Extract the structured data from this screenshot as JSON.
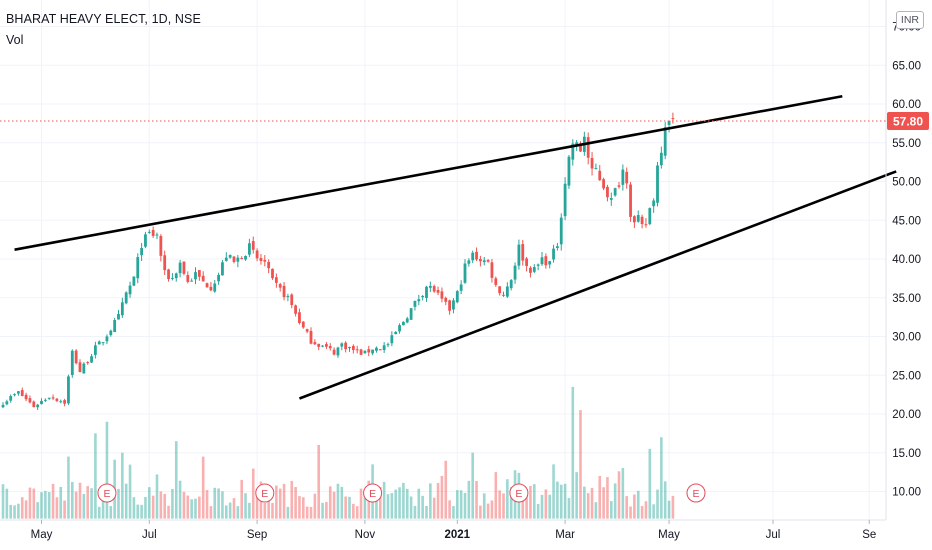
{
  "header": {
    "symbol_line": "BHARAT HEAVY ELECT, 1D, NSE",
    "volume_label": "Vol",
    "currency": "INR"
  },
  "chart_data": {
    "type": "candlestick",
    "title": "BHARAT HEAVY ELECT, 1D, NSE",
    "y_axis_side": "right",
    "ylim": [
      6,
      71
    ],
    "yticks": [
      "10.00",
      "15.00",
      "20.00",
      "25.00",
      "30.00",
      "35.00",
      "40.00",
      "45.00",
      "50.00",
      "55.00",
      "60.00",
      "65.00",
      "70.00"
    ],
    "xticks": [
      {
        "label": "May",
        "idx": 10,
        "bold": false
      },
      {
        "label": "Jul",
        "idx": 38,
        "bold": false
      },
      {
        "label": "Sep",
        "idx": 66,
        "bold": false
      },
      {
        "label": "Nov",
        "idx": 94,
        "bold": false
      },
      {
        "label": "2021",
        "idx": 118,
        "bold": true
      },
      {
        "label": "Mar",
        "idx": 146,
        "bold": false
      },
      {
        "label": "May",
        "idx": 173,
        "bold": false
      },
      {
        "label": "Jul",
        "idx": 200,
        "bold": false
      },
      {
        "label": "Se",
        "idx": 225,
        "bold": false
      }
    ],
    "last_price": "57.80",
    "last_price_color": "#ef5350",
    "up_color": "#26a69a",
    "down_color": "#ef5350",
    "price_keypoints": [
      [
        0,
        21.5
      ],
      [
        4,
        22.8
      ],
      [
        8,
        21.0
      ],
      [
        12,
        22.3
      ],
      [
        16,
        21.5
      ],
      [
        18,
        28.0
      ],
      [
        20,
        25.5
      ],
      [
        22,
        27.0
      ],
      [
        24,
        28.5
      ],
      [
        26,
        29.5
      ],
      [
        28,
        31.0
      ],
      [
        30,
        32.5
      ],
      [
        32,
        35.5
      ],
      [
        34,
        37.5
      ],
      [
        36,
        42.0
      ],
      [
        38,
        43.2
      ],
      [
        40,
        43.0
      ],
      [
        42,
        38.0
      ],
      [
        44,
        37.5
      ],
      [
        46,
        39.5
      ],
      [
        48,
        37.0
      ],
      [
        50,
        38.0
      ],
      [
        52,
        37.0
      ],
      [
        54,
        36.5
      ],
      [
        56,
        38.0
      ],
      [
        58,
        40.5
      ],
      [
        60,
        39.5
      ],
      [
        62,
        40.5
      ],
      [
        64,
        41.5
      ],
      [
        66,
        40.0
      ],
      [
        68,
        39.5
      ],
      [
        70,
        37.0
      ],
      [
        72,
        36.0
      ],
      [
        74,
        35.0
      ],
      [
        76,
        33.0
      ],
      [
        78,
        31.0
      ],
      [
        80,
        29.5
      ],
      [
        82,
        29.0
      ],
      [
        84,
        28.5
      ],
      [
        86,
        28.0
      ],
      [
        88,
        29.0
      ],
      [
        90,
        28.5
      ],
      [
        92,
        28.0
      ],
      [
        94,
        27.8
      ],
      [
        96,
        28.5
      ],
      [
        98,
        28.5
      ],
      [
        100,
        29.0
      ],
      [
        102,
        30.5
      ],
      [
        104,
        32.0
      ],
      [
        106,
        33.5
      ],
      [
        108,
        35.0
      ],
      [
        110,
        36.5
      ],
      [
        112,
        36.0
      ],
      [
        114,
        34.5
      ],
      [
        116,
        33.5
      ],
      [
        118,
        35.5
      ],
      [
        120,
        39.0
      ],
      [
        122,
        40.5
      ],
      [
        124,
        40.0
      ],
      [
        126,
        39.5
      ],
      [
        128,
        36.5
      ],
      [
        130,
        35.5
      ],
      [
        132,
        37.5
      ],
      [
        134,
        41.5
      ],
      [
        136,
        39.0
      ],
      [
        138,
        38.5
      ],
      [
        140,
        40.0
      ],
      [
        142,
        39.5
      ],
      [
        144,
        42.0
      ],
      [
        145,
        46.0
      ],
      [
        146,
        50.0
      ],
      [
        147,
        53.0
      ],
      [
        148,
        55.0
      ],
      [
        150,
        54.0
      ],
      [
        151,
        56.0
      ],
      [
        152,
        53.0
      ],
      [
        153,
        51.0
      ],
      [
        154,
        51.5
      ],
      [
        156,
        49.5
      ],
      [
        158,
        47.5
      ],
      [
        160,
        50.0
      ],
      [
        161,
        51.5
      ],
      [
        162,
        50.5
      ],
      [
        163,
        46.0
      ],
      [
        164,
        44.5
      ],
      [
        165,
        45.0
      ],
      [
        166,
        44.0
      ],
      [
        167,
        44.5
      ],
      [
        168,
        46.5
      ],
      [
        169,
        48.0
      ],
      [
        170,
        52.0
      ],
      [
        171,
        54.5
      ],
      [
        172,
        57.5
      ],
      [
        173,
        58.5
      ],
      [
        174,
        57.8
      ]
    ],
    "volume_spikes": [
      [
        17,
        14.5
      ],
      [
        24,
        17.5
      ],
      [
        27,
        19.0
      ],
      [
        31,
        15.0
      ],
      [
        45,
        16.5
      ],
      [
        52,
        14.5
      ],
      [
        62,
        11.5
      ],
      [
        82,
        16.0
      ],
      [
        96,
        13.5
      ],
      [
        122,
        15.0
      ],
      [
        128,
        12.5
      ],
      [
        143,
        13.5
      ],
      [
        148,
        23.5
      ],
      [
        149,
        12.5
      ],
      [
        150,
        20.5
      ],
      [
        155,
        12.0
      ],
      [
        168,
        15.5
      ],
      [
        171,
        17.0
      ]
    ],
    "volume_scale_max": 24,
    "trendlines": [
      {
        "name": "upper-trendline",
        "points": [
          {
            "idx": 3,
            "price": 41.2
          },
          {
            "idx": 218,
            "price": 61.0
          }
        ]
      },
      {
        "name": "lower-trendline",
        "points": [
          {
            "idx": 77,
            "price": 22.0
          },
          {
            "idx": 232,
            "price": 51.3
          }
        ]
      }
    ],
    "earnings_markers": [
      {
        "label": "E",
        "idx": 27
      },
      {
        "label": "E",
        "idx": 68
      },
      {
        "label": "E",
        "idx": 96
      },
      {
        "label": "E",
        "idx": 134
      },
      {
        "label": "E",
        "idx": 180
      }
    ],
    "grid": true
  }
}
